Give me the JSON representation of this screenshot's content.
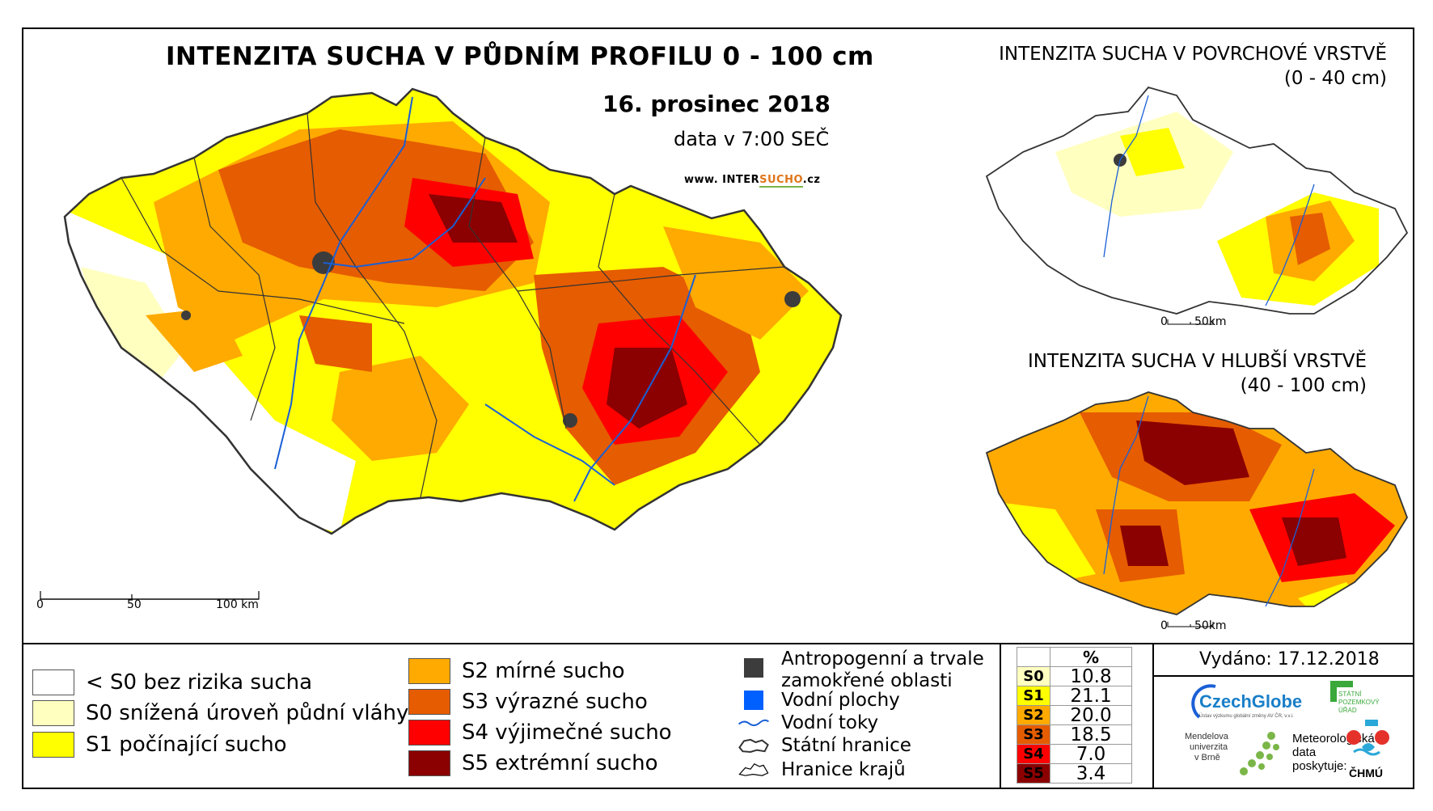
{
  "main": {
    "title": "INTENZITA SUCHA V PŮDNÍM PROFILU 0 - 100 cm",
    "date": "16. prosinec 2018",
    "time": "data v 7:00 SEČ",
    "website_prefix": "www. INTER",
    "website_highlight": "SUCHO",
    "website_suffix": ".cz",
    "scale_labels": [
      "0",
      "50",
      "100 km"
    ]
  },
  "inset_surface": {
    "title": "INTENZITA SUCHA V POVRCHOVÉ VRSTVĚ",
    "range": "(0 - 40 cm)",
    "scale_labels": [
      "0",
      "50km"
    ]
  },
  "inset_deep": {
    "title": "INTENZITA SUCHA V HLUBŠÍ VRSTVĚ",
    "range": "(40 - 100 cm)",
    "scale_labels": [
      "0",
      "50km"
    ]
  },
  "legend": {
    "classes": [
      {
        "label": "< S0 bez rizika sucha",
        "color": "#ffffff"
      },
      {
        "label": "S0 snížená úroveň půdní vláhy",
        "color": "#ffffc0"
      },
      {
        "label": "S1 počínající sucho",
        "color": "#ffff00"
      },
      {
        "label": "S2 mírné sucho",
        "color": "#ffaa00"
      },
      {
        "label": "S3 výrazné sucho",
        "color": "#e65c00"
      },
      {
        "label": "S4 výjimečné sucho",
        "color": "#ff0000"
      },
      {
        "label": "S5 extrémní sucho",
        "color": "#8b0000"
      }
    ],
    "symbols": [
      {
        "label": "Antropogenní a trvale\nzamokřené oblasti",
        "icon": "dark-square-icon",
        "color": "#3c3c3c"
      },
      {
        "label": "Vodní plochy",
        "icon": "blue-square-icon",
        "color": "#0060ff"
      },
      {
        "label": "Vodní toky",
        "icon": "river-line-icon",
        "color": "#1a5fd6"
      },
      {
        "label": "Státní hranice",
        "icon": "state-border-icon",
        "color": "#000000"
      },
      {
        "label": "Hranice krajů",
        "icon": "region-border-icon",
        "color": "#000000"
      }
    ]
  },
  "percent_table": {
    "header": "%",
    "rows": [
      {
        "cls": "S0",
        "value": "10.8",
        "color": "#ffffc0"
      },
      {
        "cls": "S1",
        "value": "21.1",
        "color": "#ffff00"
      },
      {
        "cls": "S2",
        "value": "20.0",
        "color": "#ffaa00"
      },
      {
        "cls": "S3",
        "value": "18.5",
        "color": "#e65c00"
      },
      {
        "cls": "S4",
        "value": "7.0",
        "color": "#ff0000"
      },
      {
        "cls": "S5",
        "value": "3.4",
        "color": "#8b0000"
      }
    ]
  },
  "credits": {
    "issued": "Vydáno: 17.12.2018",
    "czechglobe": "CzechGlobe",
    "czechglobe_sub": "Ústav výzkumu globální změny AV ČR, v.v.i.",
    "spu_lines": [
      "STÁTNÍ",
      "POZEMKOVÝ",
      "ÚŘAD"
    ],
    "mendel_lines": [
      "Mendelova",
      "univerzita",
      "v Brně"
    ],
    "meteo_lines": [
      "Meteorologická",
      "data",
      "poskytuje:"
    ],
    "chmu": "ČHMÚ"
  }
}
